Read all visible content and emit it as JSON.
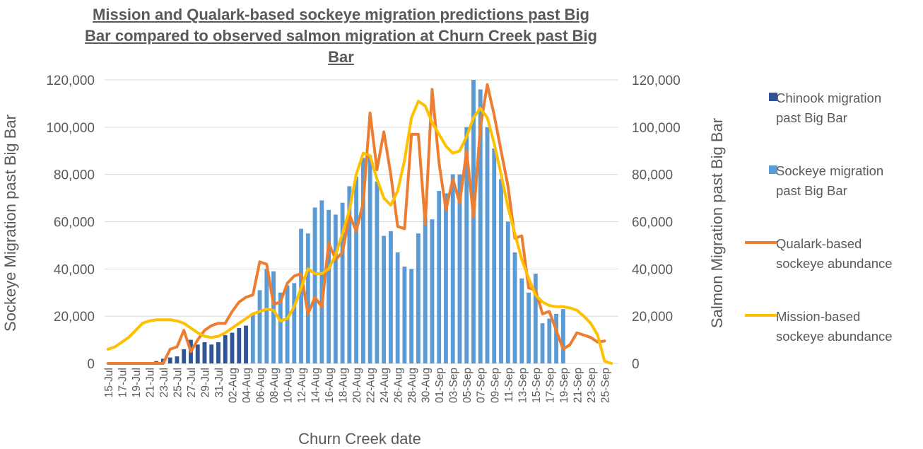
{
  "chart_data": {
    "type": "combo",
    "title": "Mission and Qualark-based sockeye migration predictions past Big Bar compared to observed salmon migration at Churn Creek past Big Bar",
    "x_label": "Churn Creek date",
    "y_label": "Sockeye Migration past Big Bar",
    "y2_label": "Salmon Migration past Big Bar",
    "categories": [
      "15-Jul",
      null,
      "17-Jul",
      null,
      "19-Jul",
      null,
      "21-Jul",
      null,
      "23-Jul",
      null,
      "25-Jul",
      null,
      "27-Jul",
      null,
      "29-Jul",
      null,
      "31-Jul",
      null,
      "02-Aug",
      null,
      "04-Aug",
      null,
      "06-Aug",
      null,
      "08-Aug",
      null,
      "10-Aug",
      null,
      "12-Aug",
      null,
      "14-Aug",
      null,
      "16-Aug",
      null,
      "18-Aug",
      null,
      "20-Aug",
      null,
      "22-Aug",
      null,
      "24-Aug",
      null,
      "26-Aug",
      null,
      "28-Aug",
      null,
      "30-Aug",
      null,
      "01-Sep",
      null,
      "03-Sep",
      null,
      "05-Sep",
      null,
      "07-Sep",
      null,
      "09-Sep",
      null,
      "11-Sep",
      null,
      "13-Sep",
      null,
      "15-Sep",
      null,
      "17-Sep",
      null,
      "19-Sep",
      null,
      "21-Sep",
      null,
      "23-Sep",
      null,
      "25-Sep",
      null
    ],
    "series": [
      {
        "name": "Chinook migration past Big Bar",
        "kind": "bar",
        "color": "#2f5597",
        "values": [
          null,
          null,
          null,
          null,
          null,
          null,
          null,
          1000,
          2000,
          2500,
          3000,
          6000,
          10000,
          8000,
          9000,
          8000,
          9000,
          12000,
          13000,
          15000,
          16000,
          null,
          null,
          null,
          null,
          null,
          null,
          null,
          null,
          null,
          null,
          null,
          null,
          null,
          null,
          null,
          null,
          null,
          null,
          null,
          null,
          null,
          null,
          null,
          null,
          null,
          null,
          null,
          null,
          null,
          null,
          null,
          null,
          null,
          null,
          null,
          null,
          null,
          null,
          null,
          null,
          null,
          null,
          null,
          null,
          null,
          null,
          null,
          null,
          null,
          null,
          null,
          null,
          null
        ]
      },
      {
        "name": "Sockeye migration past Big Bar",
        "kind": "bar",
        "color": "#5b9bd5",
        "values": [
          null,
          null,
          null,
          null,
          null,
          null,
          null,
          null,
          null,
          null,
          null,
          null,
          null,
          null,
          null,
          null,
          null,
          null,
          null,
          null,
          null,
          21000,
          31000,
          40000,
          39000,
          30000,
          33000,
          34000,
          57000,
          55000,
          66000,
          69000,
          65000,
          63000,
          68000,
          75000,
          79000,
          87000,
          88000,
          77000,
          54000,
          56000,
          47000,
          41000,
          40000,
          55000,
          62000,
          61000,
          73000,
          72000,
          80000,
          80000,
          100000,
          120000,
          116000,
          100000,
          91000,
          78000,
          60000,
          47000,
          36000,
          30000,
          38000,
          17000,
          19000,
          21000,
          23000,
          null,
          null,
          null,
          null,
          null,
          null,
          null
        ]
      },
      {
        "name": "Qualark-based sockeye abundance",
        "kind": "line",
        "axis": "y2",
        "color": "#ed7d31",
        "values": [
          0,
          0,
          0,
          0,
          0,
          0,
          0,
          0,
          0,
          6000,
          7000,
          14000,
          5000,
          10000,
          14000,
          16000,
          17000,
          17000,
          22000,
          26000,
          28000,
          29000,
          43000,
          42000,
          25000,
          26000,
          34000,
          37000,
          38000,
          21000,
          28000,
          24000,
          51000,
          44000,
          47000,
          63000,
          56000,
          68000,
          106000,
          82000,
          98000,
          80000,
          58000,
          57000,
          97000,
          97000,
          59000,
          116000,
          85000,
          65000,
          78000,
          68000,
          90000,
          62000,
          100000,
          118000,
          105000,
          90000,
          75000,
          53000,
          54000,
          32000,
          31000,
          21000,
          22000,
          14000,
          6000,
          8000,
          13000,
          12000,
          11000,
          9000,
          9500,
          null
        ]
      },
      {
        "name": "Mission-based sockeye abundance",
        "kind": "line",
        "axis": "y2",
        "color": "#ffc000",
        "values": [
          6000,
          7000,
          9000,
          11000,
          14000,
          17000,
          18000,
          18500,
          18500,
          18500,
          18000,
          17000,
          15000,
          13000,
          11500,
          11000,
          11500,
          13000,
          15000,
          17000,
          19000,
          21000,
          22000,
          23000,
          22500,
          18000,
          19000,
          24000,
          32000,
          40000,
          38000,
          38000,
          40000,
          46000,
          55000,
          65000,
          80000,
          89000,
          88000,
          78000,
          70000,
          67000,
          73000,
          86000,
          104000,
          111000,
          109000,
          102000,
          97000,
          92000,
          89000,
          90000,
          96000,
          104000,
          108000,
          104000,
          93000,
          80000,
          66000,
          55000,
          44000,
          36000,
          29000,
          26000,
          24500,
          24000,
          24000,
          23500,
          22500,
          20000,
          17000,
          12000,
          1000,
          0
        ]
      }
    ],
    "ylim": [
      0,
      120000
    ],
    "yticks": [
      0,
      {
        "value": 20000,
        "label": "20,000"
      },
      {
        "value": 40000,
        "label": "40,000"
      },
      {
        "value": 60000,
        "label": "60,000"
      },
      {
        "value": 80000,
        "label": "80,000"
      },
      {
        "value": 100000,
        "label": "100,000"
      },
      {
        "value": 120000,
        "label": "120,000"
      }
    ],
    "y2lim": [
      0,
      120000
    ],
    "y2ticks": [
      0,
      {
        "value": 20000,
        "label": "20,000"
      },
      {
        "value": 40000,
        "label": "40,000"
      },
      {
        "value": 60000,
        "label": "60,000"
      },
      {
        "value": 80000,
        "label": "80,000"
      },
      {
        "value": 100000,
        "label": "100,000"
      },
      {
        "value": 120000,
        "label": "120,000"
      }
    ],
    "grid": true,
    "legend": "right"
  }
}
